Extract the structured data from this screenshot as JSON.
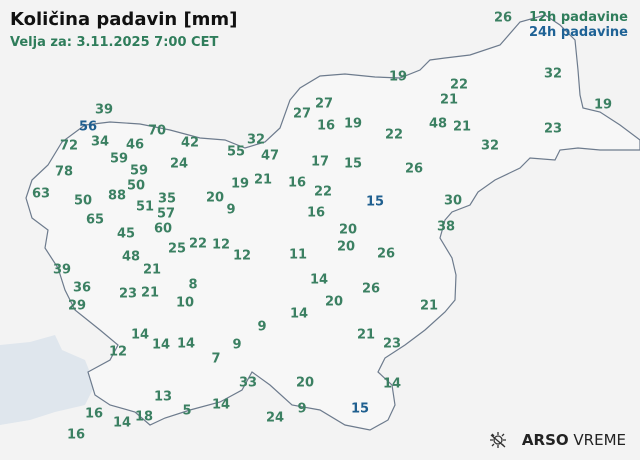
{
  "header": {
    "title": "Količina padavin [mm]",
    "valid_for": "Velja za: 3.11.2025 7:00 CET"
  },
  "legend": {
    "label_12h": "12h padavine",
    "label_24h": "24h padavine",
    "color_12h": "#3b8062",
    "color_24h": "#1f5f8f"
  },
  "brand": {
    "icon": "sun-icon",
    "name_bold": "ARSO",
    "name": "VREME"
  },
  "stations": [
    {
      "value": "26",
      "type": "12h"
    },
    {
      "value": "19",
      "type": "12h"
    },
    {
      "value": "22",
      "type": "12h"
    },
    {
      "value": "32",
      "type": "12h"
    },
    {
      "value": "21",
      "type": "12h"
    },
    {
      "value": "19",
      "type": "12h"
    },
    {
      "value": "27",
      "type": "12h"
    },
    {
      "value": "27",
      "type": "12h"
    },
    {
      "value": "16",
      "type": "12h"
    },
    {
      "value": "19",
      "type": "12h"
    },
    {
      "value": "48",
      "type": "12h"
    },
    {
      "value": "21",
      "type": "12h"
    },
    {
      "value": "22",
      "type": "12h"
    },
    {
      "value": "23",
      "type": "12h"
    },
    {
      "value": "32",
      "type": "12h"
    },
    {
      "value": "39",
      "type": "12h"
    },
    {
      "value": "56",
      "type": "24h"
    },
    {
      "value": "70",
      "type": "12h"
    },
    {
      "value": "72",
      "type": "12h"
    },
    {
      "value": "34",
      "type": "12h"
    },
    {
      "value": "46",
      "type": "12h"
    },
    {
      "value": "42",
      "type": "12h"
    },
    {
      "value": "32",
      "type": "12h"
    },
    {
      "value": "55",
      "type": "12h"
    },
    {
      "value": "47",
      "type": "12h"
    },
    {
      "value": "59",
      "type": "12h"
    },
    {
      "value": "24",
      "type": "12h"
    },
    {
      "value": "17",
      "type": "12h"
    },
    {
      "value": "15",
      "type": "12h"
    },
    {
      "value": "26",
      "type": "12h"
    },
    {
      "value": "78",
      "type": "12h"
    },
    {
      "value": "59",
      "type": "12h"
    },
    {
      "value": "50",
      "type": "12h"
    },
    {
      "value": "19",
      "type": "12h"
    },
    {
      "value": "21",
      "type": "12h"
    },
    {
      "value": "16",
      "type": "12h"
    },
    {
      "value": "22",
      "type": "12h"
    },
    {
      "value": "63",
      "type": "12h"
    },
    {
      "value": "88",
      "type": "12h"
    },
    {
      "value": "20",
      "type": "12h"
    },
    {
      "value": "50",
      "type": "12h"
    },
    {
      "value": "51",
      "type": "12h"
    },
    {
      "value": "35",
      "type": "12h"
    },
    {
      "value": "57",
      "type": "12h"
    },
    {
      "value": "9",
      "type": "12h"
    },
    {
      "value": "15",
      "type": "24h"
    },
    {
      "value": "30",
      "type": "12h"
    },
    {
      "value": "16",
      "type": "12h"
    },
    {
      "value": "65",
      "type": "12h"
    },
    {
      "value": "60",
      "type": "12h"
    },
    {
      "value": "45",
      "type": "12h"
    },
    {
      "value": "20",
      "type": "12h"
    },
    {
      "value": "38",
      "type": "12h"
    },
    {
      "value": "25",
      "type": "12h"
    },
    {
      "value": "22",
      "type": "12h"
    },
    {
      "value": "12",
      "type": "12h"
    },
    {
      "value": "12",
      "type": "12h"
    },
    {
      "value": "11",
      "type": "12h"
    },
    {
      "value": "20",
      "type": "12h"
    },
    {
      "value": "26",
      "type": "12h"
    },
    {
      "value": "48",
      "type": "12h"
    },
    {
      "value": "39",
      "type": "12h"
    },
    {
      "value": "21",
      "type": "12h"
    },
    {
      "value": "14",
      "type": "12h"
    },
    {
      "value": "8",
      "type": "12h"
    },
    {
      "value": "36",
      "type": "12h"
    },
    {
      "value": "26",
      "type": "12h"
    },
    {
      "value": "23",
      "type": "12h"
    },
    {
      "value": "21",
      "type": "12h"
    },
    {
      "value": "10",
      "type": "12h"
    },
    {
      "value": "20",
      "type": "12h"
    },
    {
      "value": "29",
      "type": "12h"
    },
    {
      "value": "21",
      "type": "12h"
    },
    {
      "value": "14",
      "type": "12h"
    },
    {
      "value": "9",
      "type": "12h"
    },
    {
      "value": "14",
      "type": "12h"
    },
    {
      "value": "21",
      "type": "12h"
    },
    {
      "value": "14",
      "type": "12h"
    },
    {
      "value": "14",
      "type": "12h"
    },
    {
      "value": "9",
      "type": "12h"
    },
    {
      "value": "23",
      "type": "12h"
    },
    {
      "value": "12",
      "type": "12h"
    },
    {
      "value": "7",
      "type": "12h"
    },
    {
      "value": "33",
      "type": "12h"
    },
    {
      "value": "20",
      "type": "12h"
    },
    {
      "value": "14",
      "type": "12h"
    },
    {
      "value": "13",
      "type": "12h"
    },
    {
      "value": "16",
      "type": "12h"
    },
    {
      "value": "5",
      "type": "12h"
    },
    {
      "value": "14",
      "type": "12h"
    },
    {
      "value": "18",
      "type": "12h"
    },
    {
      "value": "14",
      "type": "12h"
    },
    {
      "value": "24",
      "type": "12h"
    },
    {
      "value": "9",
      "type": "12h"
    },
    {
      "value": "15",
      "type": "24h"
    },
    {
      "value": "16",
      "type": "12h"
    }
  ]
}
